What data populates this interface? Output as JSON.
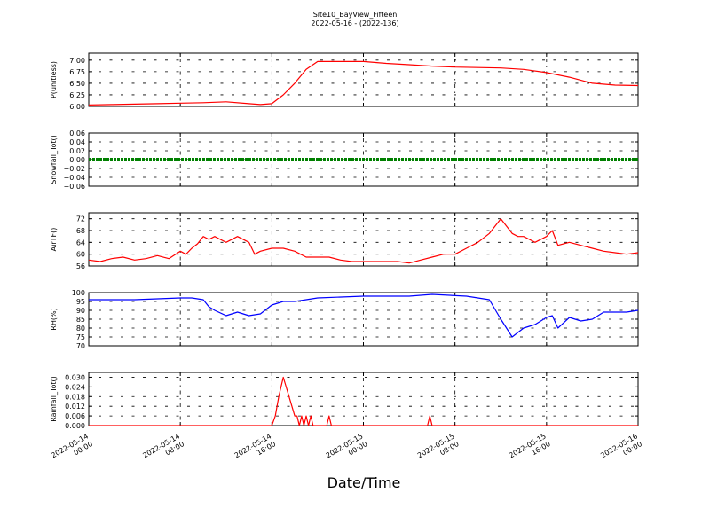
{
  "figure": {
    "title_line1": "Site10_BayView_Fifteen",
    "title_line2": "2022-05-16 - (2022-136)",
    "xlabel": "Date/Time"
  },
  "chart_data": [
    {
      "type": "line",
      "ylabel": "P(unitless)",
      "ylim": [
        6.0,
        7.15
      ],
      "yticks": [
        "6.00",
        "6.25",
        "6.50",
        "6.75",
        "7.00"
      ],
      "grid": true,
      "color": "#ff0000",
      "x_ticks": [
        "2022-05-14 00:00",
        "2022-05-14 08:00",
        "2022-05-14 16:00",
        "2022-05-15 00:00",
        "2022-05-15 08:00",
        "2022-05-15 16:00",
        "2022-05-16 00:00"
      ],
      "x_hours": [
        0,
        2,
        4,
        6,
        8,
        10,
        12,
        14,
        15,
        16,
        17,
        18,
        19,
        20,
        22,
        24,
        26,
        28,
        30,
        32,
        34,
        36,
        38,
        40,
        42,
        44,
        46,
        48
      ],
      "values": [
        6.03,
        6.04,
        6.05,
        6.06,
        6.07,
        6.08,
        6.1,
        6.06,
        6.04,
        6.06,
        6.25,
        6.5,
        6.8,
        6.97,
        6.97,
        6.97,
        6.93,
        6.9,
        6.87,
        6.85,
        6.84,
        6.83,
        6.8,
        6.73,
        6.63,
        6.5,
        6.46,
        6.45
      ]
    },
    {
      "type": "line",
      "ylabel": "Snowfall_Tot()",
      "ylim": [
        -0.06,
        0.06
      ],
      "yticks": [
        "0.06",
        "0.04",
        "0.02",
        "0.00",
        "−0.02",
        "−0.04",
        "−0.06"
      ],
      "grid": true,
      "color": "#008000",
      "x_hours": [
        0,
        48
      ],
      "values": [
        0.0,
        0.0
      ]
    },
    {
      "type": "line",
      "ylabel": "AirTF()",
      "ylim": [
        56,
        74
      ],
      "yticks": [
        "56",
        "60",
        "64",
        "68",
        "72"
      ],
      "grid": true,
      "color": "#ff0000",
      "x_hours": [
        0,
        1,
        2,
        3,
        4,
        5,
        6,
        7,
        8,
        8.5,
        9,
        9.5,
        10,
        10.5,
        11,
        11.5,
        12,
        13,
        14,
        14.5,
        15,
        16,
        16.5,
        17,
        18,
        19,
        20,
        21,
        22,
        23,
        24,
        25,
        26,
        27,
        28,
        29,
        30,
        31,
        32,
        33,
        34,
        35,
        36,
        37,
        37.5,
        38,
        38.5,
        39,
        40,
        40.5,
        41,
        42,
        43,
        44,
        45,
        46,
        47,
        48
      ],
      "values": [
        58,
        57.5,
        58.5,
        59,
        58,
        58.5,
        59.5,
        58.5,
        61,
        60,
        62,
        63.5,
        66,
        65,
        66,
        65,
        64,
        66,
        64,
        60,
        61,
        62,
        62,
        62,
        61,
        59,
        59,
        59,
        58,
        57.5,
        57.5,
        57.5,
        57.5,
        57.5,
        57,
        58,
        59,
        60,
        60,
        62,
        64,
        67,
        72,
        67,
        66,
        66,
        65,
        64,
        66,
        68,
        63,
        64,
        63,
        62,
        61,
        60.5,
        60,
        60.5
      ]
    },
    {
      "type": "line",
      "ylabel": "RH(%)",
      "ylim": [
        70,
        100
      ],
      "yticks": [
        "70",
        "75",
        "80",
        "85",
        "90",
        "95",
        "100"
      ],
      "grid": true,
      "color": "#0000ff",
      "x_hours": [
        0,
        4,
        8,
        9,
        10,
        10.5,
        11,
        12,
        13,
        14,
        15,
        16,
        17,
        18,
        20,
        24,
        26,
        28,
        30,
        33,
        35,
        36,
        37,
        38,
        39,
        40,
        40.5,
        41,
        42,
        43,
        44,
        45,
        46,
        47,
        48
      ],
      "values": [
        96,
        96,
        97,
        97,
        96,
        92,
        90,
        87,
        89,
        87,
        88,
        93,
        95,
        95,
        97,
        98,
        98,
        98,
        99,
        98,
        96,
        85,
        75,
        80,
        82,
        86,
        87,
        80,
        86,
        84,
        85,
        89,
        89,
        89,
        90
      ]
    },
    {
      "type": "line",
      "ylabel": "Rainfall_Tot()",
      "ylim": [
        0.0,
        0.033
      ],
      "yticks": [
        "0.000",
        "0.006",
        "0.012",
        "0.018",
        "0.024",
        "0.030"
      ],
      "grid": true,
      "color": "#ff0000",
      "x_hours": [
        0,
        16,
        16.3,
        16.6,
        17,
        17.5,
        18,
        18.2,
        18.4,
        18.6,
        18.8,
        19,
        19.2,
        19.4,
        19.6,
        20,
        20.8,
        21,
        21.2,
        29.6,
        29.8,
        30,
        48
      ],
      "values": [
        0,
        0,
        0.006,
        0.018,
        0.03,
        0.018,
        0.006,
        0.006,
        0,
        0.006,
        0,
        0.006,
        0,
        0.006,
        0,
        0,
        0,
        0.006,
        0,
        0,
        0.006,
        0,
        0
      ]
    }
  ]
}
